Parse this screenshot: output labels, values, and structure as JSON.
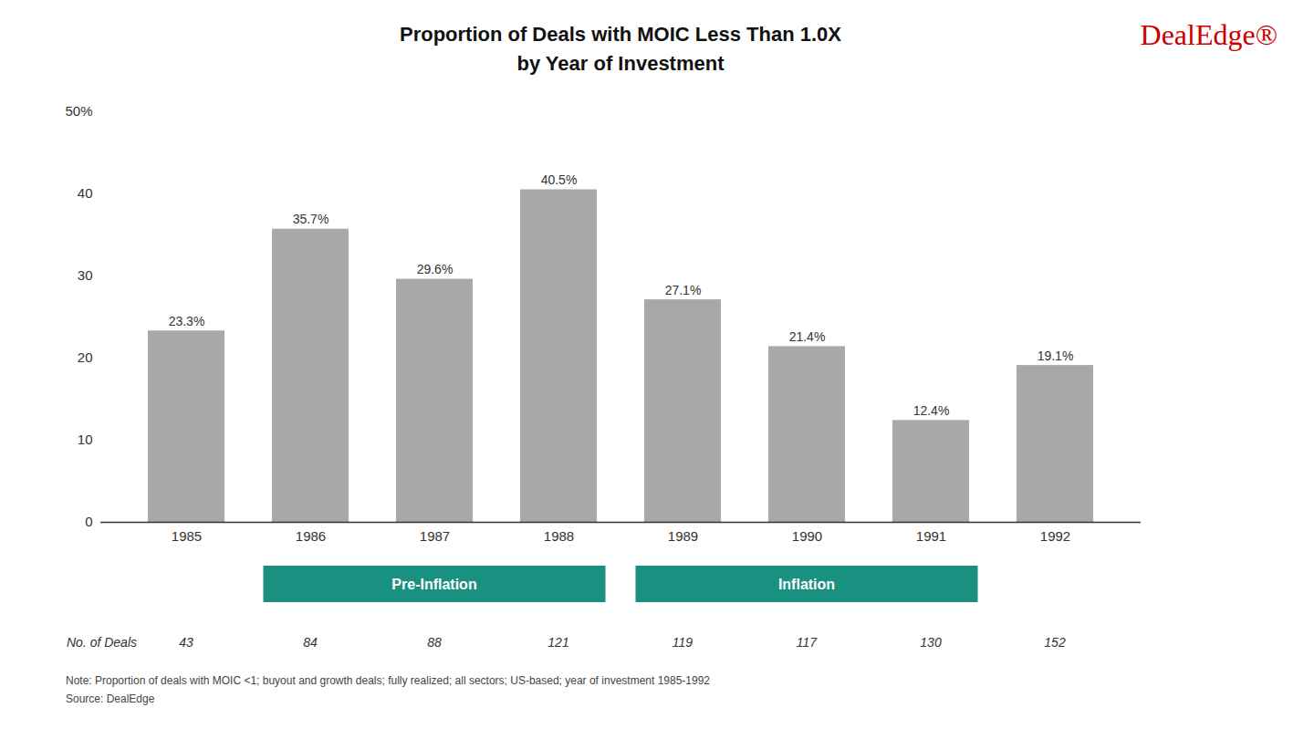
{
  "chart_data": {
    "type": "bar",
    "title": "Proportion of Deals with MOIC Less Than 1.0X",
    "subtitle": "by Year of Investment",
    "categories": [
      "1985",
      "1986",
      "1987",
      "1988",
      "1989",
      "1990",
      "1991",
      "1992"
    ],
    "values": [
      23.3,
      35.7,
      29.6,
      40.5,
      27.1,
      21.4,
      12.4,
      19.1
    ],
    "value_labels": [
      "23.3%",
      "35.7%",
      "29.6%",
      "40.5%",
      "27.1%",
      "21.4%",
      "12.4%",
      "19.1%"
    ],
    "data_labels": true,
    "color": "#a8a8a8",
    "ylim": [
      0,
      50
    ],
    "yticks": [
      0,
      10,
      20,
      30,
      40,
      {
        "value": 50,
        "label": "50%"
      }
    ],
    "grid": false,
    "annotations": [
      {
        "text": "Pre-Inflation",
        "from": "1986",
        "to": "1988",
        "color": "#1a9080"
      },
      {
        "text": "Inflation",
        "from": "1989",
        "to": "1991",
        "color": "#1a9080"
      }
    ],
    "deals": {
      "label": "No. of Deals",
      "values": [
        43,
        84,
        88,
        121,
        119,
        117,
        130,
        152
      ]
    },
    "notes": [
      "Note: Proportion of deals with MOIC <1; buyout and growth deals; fully realized; all sectors; US-based; year of investment 1985-1992",
      "Source: DealEdge"
    ],
    "logo": {
      "text": "DealEdge®",
      "color": "#cc0000"
    }
  }
}
